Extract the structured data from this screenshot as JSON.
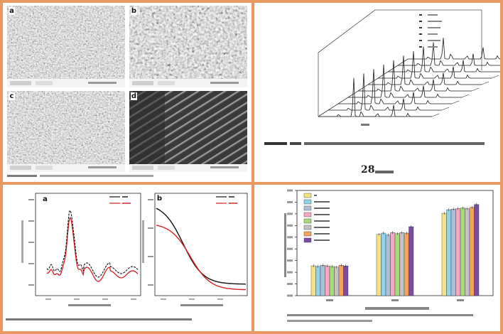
{
  "panel_xrd": {
    "caption_number": "28"
  },
  "panel_sem": {
    "images": [
      {
        "label": "a"
      },
      {
        "label": "b"
      },
      {
        "label": "c"
      },
      {
        "label": "d"
      }
    ]
  },
  "panel_pore": {
    "labels": [
      "a",
      "b"
    ]
  },
  "chart_data": [
    {
      "type": "bar",
      "categories": [
        "",
        "",
        ""
      ],
      "series": [
        {
          "color": "#f2e486",
          "values": [
            5.1,
            10.5,
            14.1
          ]
        },
        {
          "color": "#8fd3ee",
          "values": [
            5.0,
            10.7,
            14.7
          ]
        },
        {
          "color": "#aebfd6",
          "values": [
            5.2,
            10.4,
            14.8
          ]
        },
        {
          "color": "#f4a8c3",
          "values": [
            5.1,
            10.8,
            14.9
          ]
        },
        {
          "color": "#a9d97a",
          "values": [
            5.0,
            10.6,
            15.0
          ]
        },
        {
          "color": "#c3c3c3",
          "values": [
            4.9,
            10.8,
            14.9
          ]
        },
        {
          "color": "#f6a45c",
          "values": [
            5.2,
            10.7,
            15.1
          ]
        },
        {
          "color": "#7b4ba6",
          "values": [
            5.1,
            11.8,
            15.6
          ]
        }
      ],
      "ylim": [
        0,
        18
      ]
    },
    {
      "type": "line",
      "series": [
        {
          "color": "#111111"
        },
        {
          "color": "#d42020"
        }
      ]
    },
    {
      "type": "line",
      "series": [
        {
          "color": "#111111"
        },
        {
          "color": "#d42020"
        }
      ]
    }
  ]
}
